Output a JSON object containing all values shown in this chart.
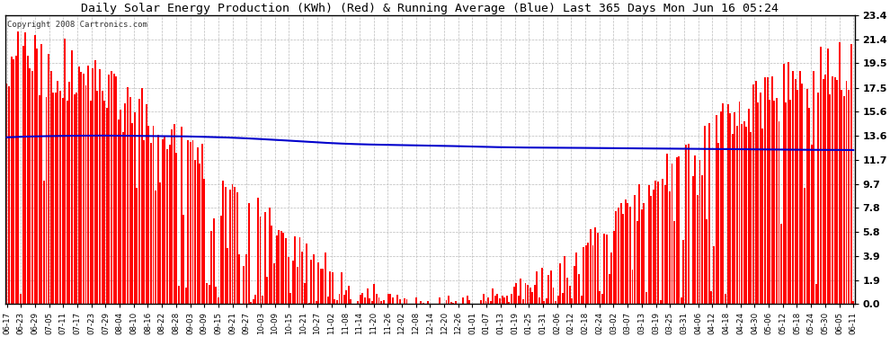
{
  "title": "Daily Solar Energy Production (KWh) (Red) & Running Average (Blue) Last 365 Days Mon Jun 16 05:24",
  "copyright": "Copyright 2008 Cartronics.com",
  "yticks": [
    0.0,
    1.9,
    3.9,
    5.8,
    7.8,
    9.7,
    11.7,
    13.6,
    15.6,
    17.5,
    19.5,
    21.4,
    23.4
  ],
  "ymax": 23.4,
  "ymin": 0.0,
  "bar_color": "#ff0000",
  "avg_color": "#0000cc",
  "background_color": "#ffffff",
  "grid_color": "#bbbbbb",
  "x_labels": [
    "06-17",
    "06-23",
    "06-29",
    "07-05",
    "07-11",
    "07-17",
    "07-23",
    "07-29",
    "08-04",
    "08-10",
    "08-16",
    "08-22",
    "08-28",
    "09-03",
    "09-09",
    "09-15",
    "09-21",
    "09-27",
    "10-03",
    "10-09",
    "10-15",
    "10-21",
    "10-27",
    "11-02",
    "11-08",
    "11-14",
    "11-20",
    "11-26",
    "12-02",
    "12-08",
    "12-14",
    "12-20",
    "12-26",
    "01-01",
    "01-07",
    "01-13",
    "01-19",
    "01-25",
    "01-31",
    "02-06",
    "02-12",
    "02-18",
    "02-24",
    "03-02",
    "03-07",
    "03-13",
    "03-19",
    "03-25",
    "03-31",
    "04-06",
    "04-12",
    "04-18",
    "04-24",
    "04-30",
    "05-06",
    "05-12",
    "05-18",
    "05-24",
    "05-30",
    "06-05",
    "06-11"
  ],
  "avg_values": [
    13.5,
    13.55,
    13.58,
    13.6,
    13.62,
    13.63,
    13.64,
    13.64,
    13.63,
    13.62,
    13.61,
    13.6,
    13.59,
    13.57,
    13.54,
    13.51,
    13.47,
    13.42,
    13.36,
    13.3,
    13.23,
    13.16,
    13.09,
    13.03,
    12.98,
    12.94,
    12.91,
    12.89,
    12.87,
    12.85,
    12.83,
    12.81,
    12.78,
    12.75,
    12.72,
    12.7,
    12.68,
    12.67,
    12.66,
    12.65,
    12.65,
    12.64,
    12.63,
    12.62,
    12.61,
    12.6,
    12.59,
    12.58,
    12.57,
    12.56,
    12.55,
    12.54,
    12.53,
    12.52,
    12.51,
    12.5,
    12.49,
    12.49,
    12.48,
    12.48,
    12.47
  ]
}
